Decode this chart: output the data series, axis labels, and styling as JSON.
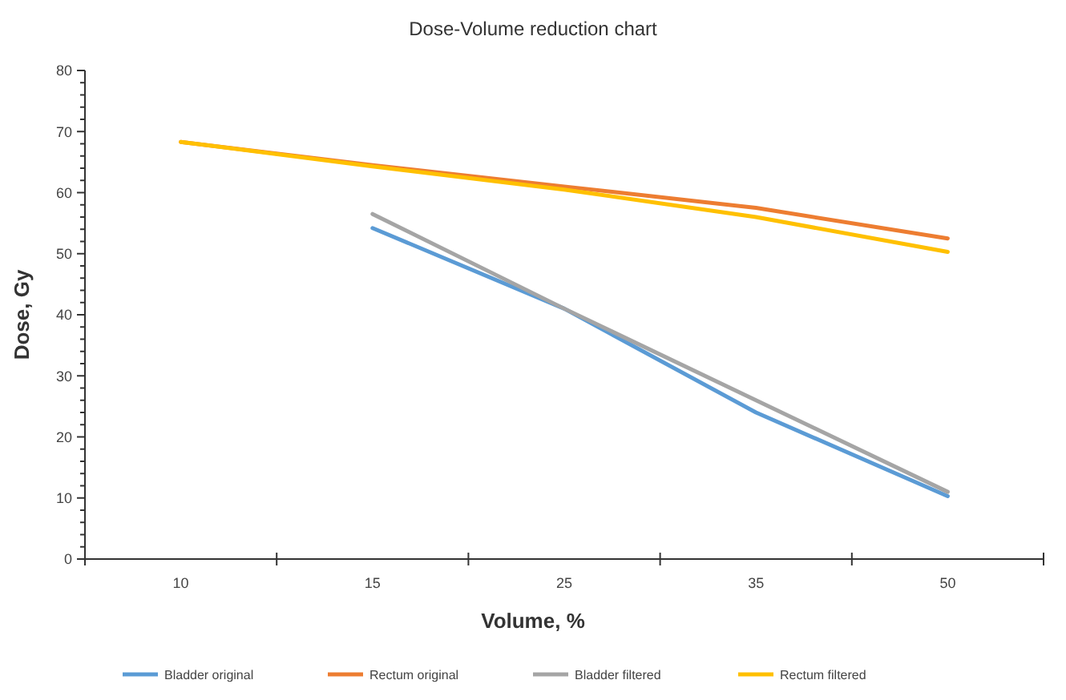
{
  "chart_data": {
    "type": "line",
    "title": "Dose-Volume reduction chart",
    "xlabel": "Volume, %",
    "ylabel": "Dose, Gy",
    "categories": [
      "10",
      "15",
      "25",
      "35",
      "50"
    ],
    "series": [
      {
        "name": "Bladder original",
        "color": "#5b9bd5",
        "values": [
          null,
          54.2,
          41,
          24,
          10.3
        ]
      },
      {
        "name": "Rectum original",
        "color": "#ed7d31",
        "values": [
          68.3,
          64.5,
          61,
          57.5,
          52.5
        ]
      },
      {
        "name": "Bladder filtered",
        "color": "#a5a5a5",
        "values": [
          null,
          56.5,
          41,
          26,
          11
        ]
      },
      {
        "name": "Rectum filtered",
        "color": "#ffc000",
        "values": [
          68.3,
          64.3,
          60.5,
          56,
          50.3
        ]
      }
    ],
    "ylim": [
      0,
      80
    ],
    "yticks": [
      0,
      {
        "value": 2,
        "label": null
      },
      {
        "value": 4,
        "label": null
      },
      {
        "value": 6,
        "label": null
      },
      {
        "value": 8,
        "label": null
      },
      10,
      {
        "value": 12,
        "label": null
      },
      {
        "value": 14,
        "label": null
      },
      {
        "value": 16,
        "label": null
      },
      {
        "value": 18,
        "label": null
      },
      20,
      {
        "value": 22,
        "label": null
      },
      {
        "value": 24,
        "label": null
      },
      {
        "value": 26,
        "label": null
      },
      {
        "value": 28,
        "label": null
      },
      30,
      {
        "value": 32,
        "label": null
      },
      {
        "value": 34,
        "label": null
      },
      {
        "value": 36,
        "label": null
      },
      {
        "value": 38,
        "label": null
      },
      40,
      {
        "value": 42,
        "label": null
      },
      {
        "value": 44,
        "label": null
      },
      {
        "value": 46,
        "label": null
      },
      {
        "value": 48,
        "label": null
      },
      50,
      {
        "value": 52,
        "label": null
      },
      {
        "value": 54,
        "label": null
      },
      {
        "value": 56,
        "label": null
      },
      {
        "value": 58,
        "label": null
      },
      60,
      {
        "value": 62,
        "label": null
      },
      {
        "value": 64,
        "label": null
      },
      {
        "value": 66,
        "label": null
      },
      {
        "value": 68,
        "label": null
      },
      70,
      {
        "value": 72,
        "label": null
      },
      {
        "value": 74,
        "label": null
      },
      {
        "value": 76,
        "label": null
      },
      {
        "value": 78,
        "label": null
      },
      80
    ],
    "grid": false,
    "legend": "bottom",
    "marker": "none",
    "line_style": "solid"
  }
}
